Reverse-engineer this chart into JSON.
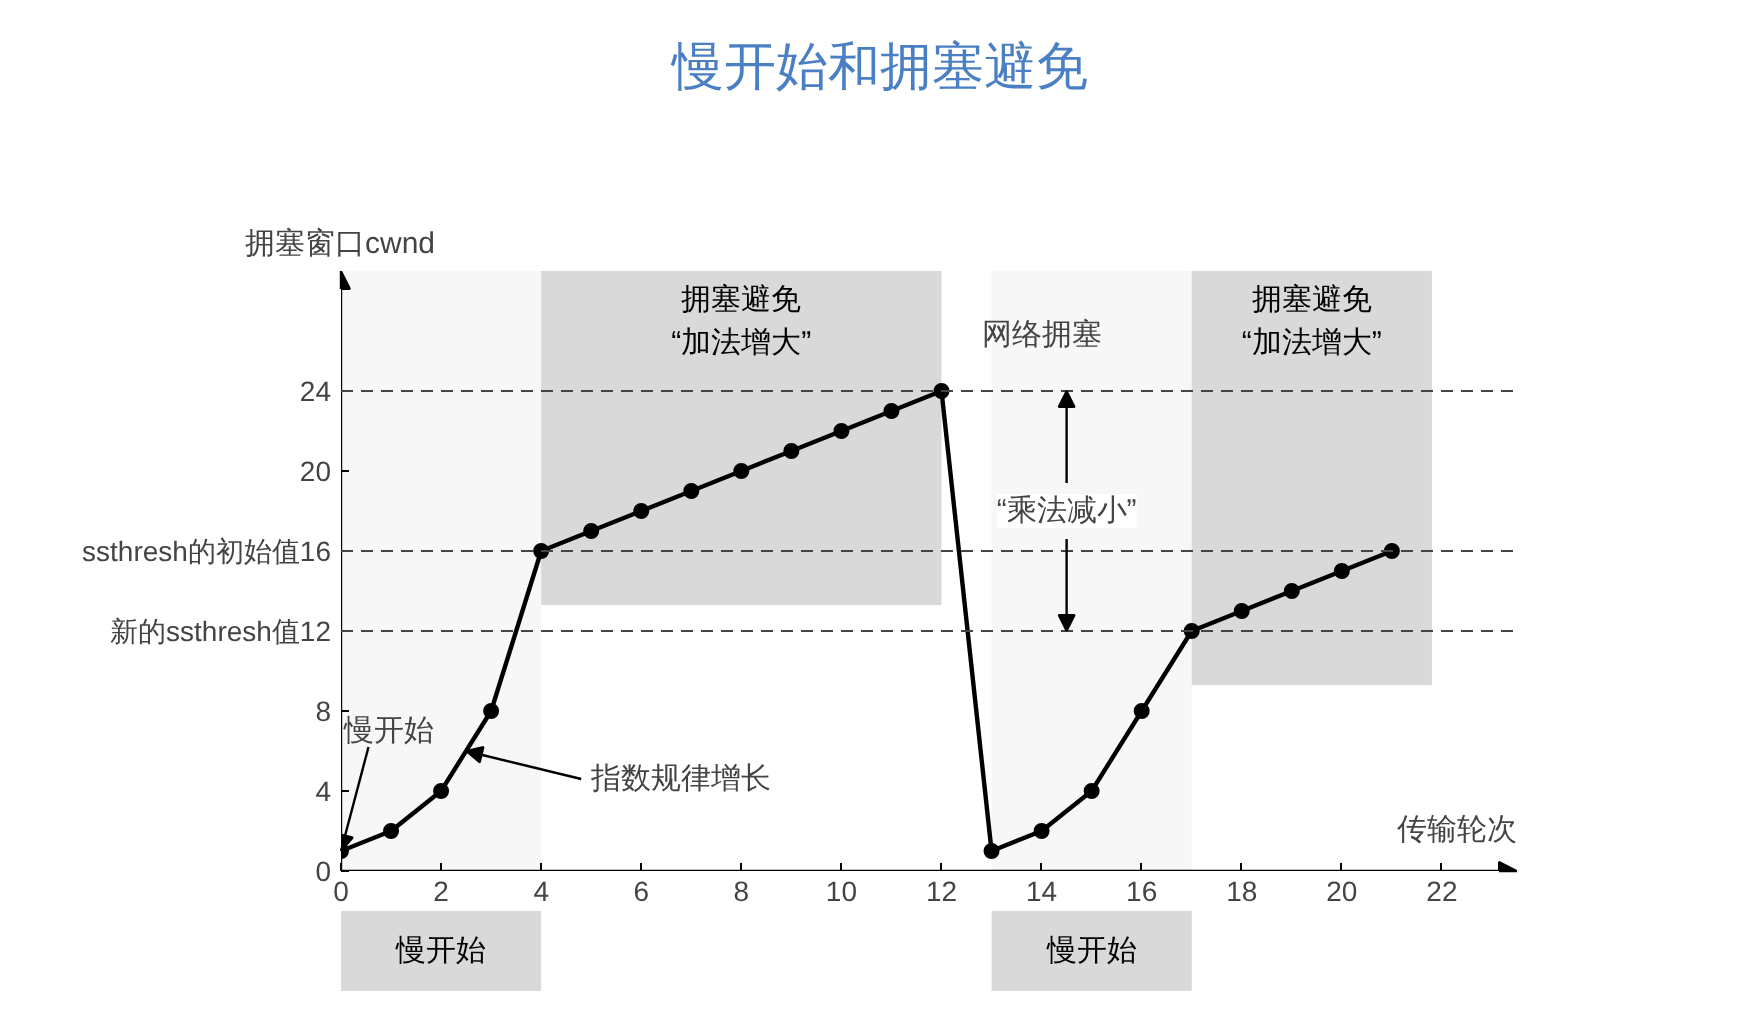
{
  "chart_data": {
    "type": "line",
    "title": "慢开始和拥塞避免",
    "xlabel": "传输轮次",
    "ylabel": "拥塞窗口cwnd",
    "x": [
      0,
      1,
      2,
      3,
      4,
      5,
      6,
      7,
      8,
      9,
      10,
      11,
      12,
      13,
      14,
      15,
      16,
      17,
      18,
      19,
      20,
      21
    ],
    "series": [
      {
        "color": "#000000",
        "values": [
          1,
          2,
          4,
          8,
          16,
          17,
          18,
          19,
          20,
          21,
          22,
          23,
          24,
          1,
          2,
          4,
          8,
          12,
          13,
          14,
          15,
          16
        ]
      }
    ],
    "xlim": [
      0,
      23.5
    ],
    "xticks": [
      0,
      2,
      4,
      6,
      8,
      10,
      12,
      14,
      16,
      18,
      20,
      22
    ],
    "ylim": [
      0,
      30
    ],
    "yticks": [
      0,
      4,
      8,
      {
        "value": 12,
        "label": "新的ssthresh值12"
      },
      {
        "value": 16,
        "label": "ssthresh的初始值16"
      },
      20,
      24
    ],
    "grid": false,
    "marker": "circle",
    "line_style": "solid",
    "ref_lines": [
      {
        "axis": "y",
        "value": 24,
        "color": "#444444",
        "line_style": "dashed"
      },
      {
        "axis": "y",
        "value": 16,
        "color": "#444444",
        "line_style": "dashed"
      },
      {
        "axis": "y",
        "value": 12,
        "color": "#444444",
        "line_style": "dashed"
      }
    ],
    "bands": [
      {
        "axis": "x",
        "from": 4,
        "to": 12,
        "label": "拥塞避免\n“加法增大”",
        "color": "#d9d9d9"
      },
      {
        "axis": "x",
        "from": 17,
        "to": 21.8,
        "label": "拥塞避免\n“加法增大”",
        "color": "#d9d9d9"
      },
      {
        "axis": "x",
        "from": 0,
        "to": 4,
        "label": "慢开始",
        "color": "#d9d9d9"
      },
      {
        "axis": "x",
        "from": 13,
        "to": 17,
        "label": "慢开始",
        "color": "#d9d9d9"
      }
    ],
    "annotations": [
      {
        "text": "网络拥塞",
        "x": 12,
        "y": 24
      },
      {
        "text": "指数规律增长",
        "x": 2.5,
        "y": 6
      },
      {
        "text": "慢开始",
        "x": 0,
        "y": 1
      },
      {
        "text": "“乘法减小”",
        "x": 14.5,
        "y": 24
      }
    ]
  }
}
